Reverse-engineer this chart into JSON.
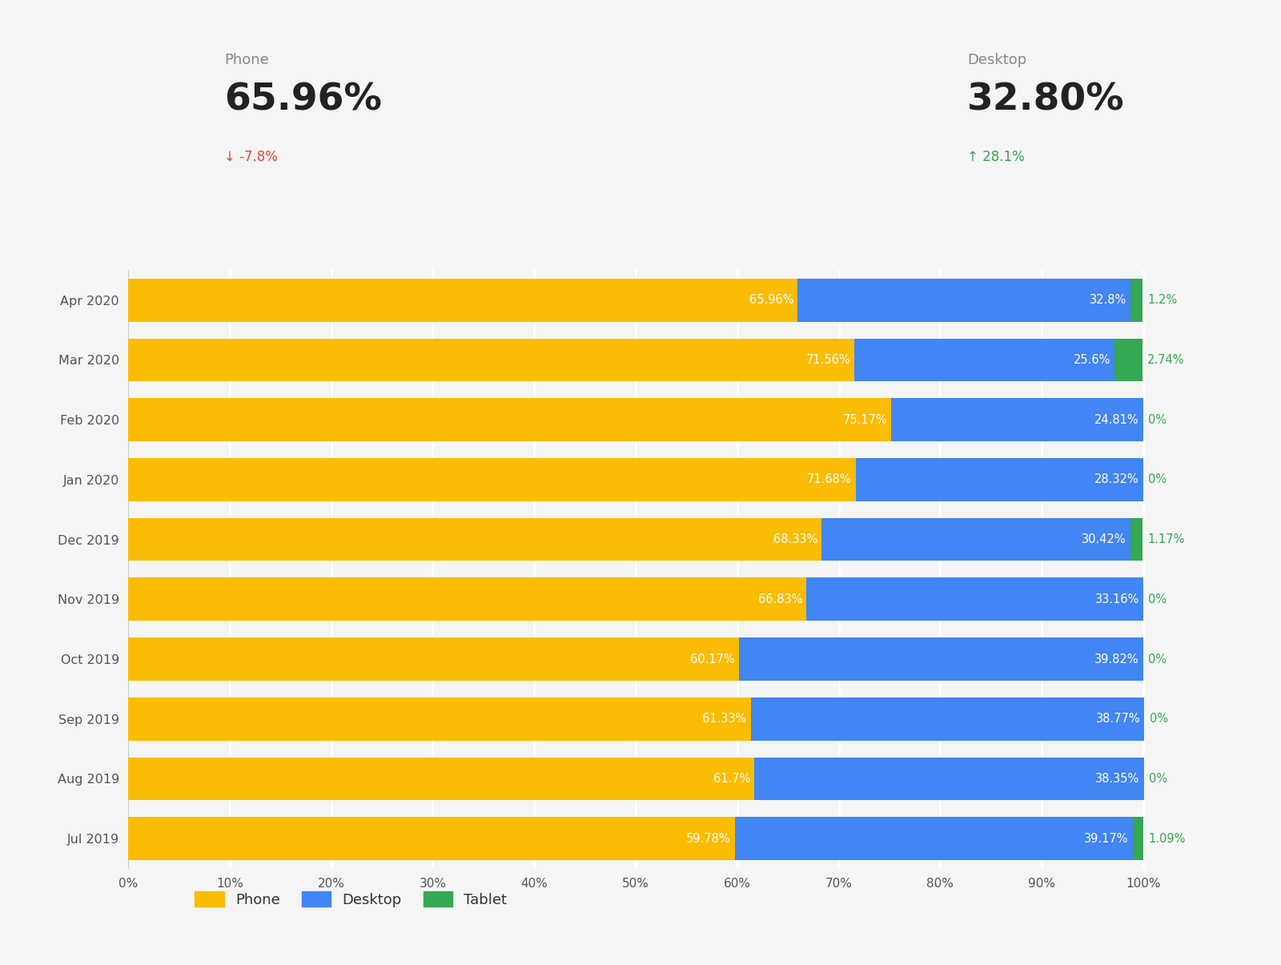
{
  "months": [
    "Apr 2020",
    "Mar 2020",
    "Feb 2020",
    "Jan 2020",
    "Dec 2019",
    "Nov 2019",
    "Oct 2019",
    "Sep 2019",
    "Aug 2019",
    "Jul 2019"
  ],
  "phone": [
    65.96,
    71.56,
    75.17,
    71.68,
    68.33,
    66.83,
    60.17,
    61.33,
    61.7,
    59.78
  ],
  "desktop": [
    32.8,
    25.6,
    24.81,
    28.32,
    30.42,
    33.16,
    39.82,
    38.77,
    38.35,
    39.17
  ],
  "tablet": [
    1.2,
    2.74,
    0.0,
    0.0,
    1.17,
    0.0,
    0.0,
    0.0,
    0.0,
    1.09
  ],
  "phone_labels": [
    "65.96%",
    "71.56%",
    "75.17%",
    "71.68%",
    "68.33%",
    "66.83%",
    "60.17%",
    "61.33%",
    "61.7%",
    "59.78%"
  ],
  "desktop_labels": [
    "32.8%",
    "25.6%",
    "24.81%",
    "28.32%",
    "30.42%",
    "33.16%",
    "39.82%",
    "38.77%",
    "38.35%",
    "39.17%"
  ],
  "tablet_labels": [
    "1.2%",
    "2.74%",
    "0%",
    "0%",
    "1.17%",
    "0%",
    "0%",
    "0%",
    "0%",
    "1.09%"
  ],
  "phone_color": "#FBBC04",
  "desktop_color": "#4285F4",
  "tablet_color": "#34A853",
  "background_color": "#F5F5F5",
  "header_phone_label": "Phone",
  "header_phone_value": "65.96%",
  "header_phone_change": "↓ -7.8%",
  "header_phone_change_color": "#EA4335",
  "header_desktop_label": "Desktop",
  "header_desktop_value": "32.80%",
  "header_desktop_change": "↑ 28.1%",
  "header_desktop_change_color": "#34A853",
  "legend_items": [
    "Phone",
    "Desktop",
    "Tablet"
  ],
  "legend_colors": [
    "#FBBC04",
    "#4285F4",
    "#34A853"
  ],
  "xtick_labels": [
    "0%",
    "10%",
    "20%",
    "30%",
    "40%",
    "50%",
    "60%",
    "70%",
    "80%",
    "90%",
    "100%"
  ],
  "xtick_values": [
    0,
    10,
    20,
    30,
    40,
    50,
    60,
    70,
    80,
    90,
    100
  ]
}
